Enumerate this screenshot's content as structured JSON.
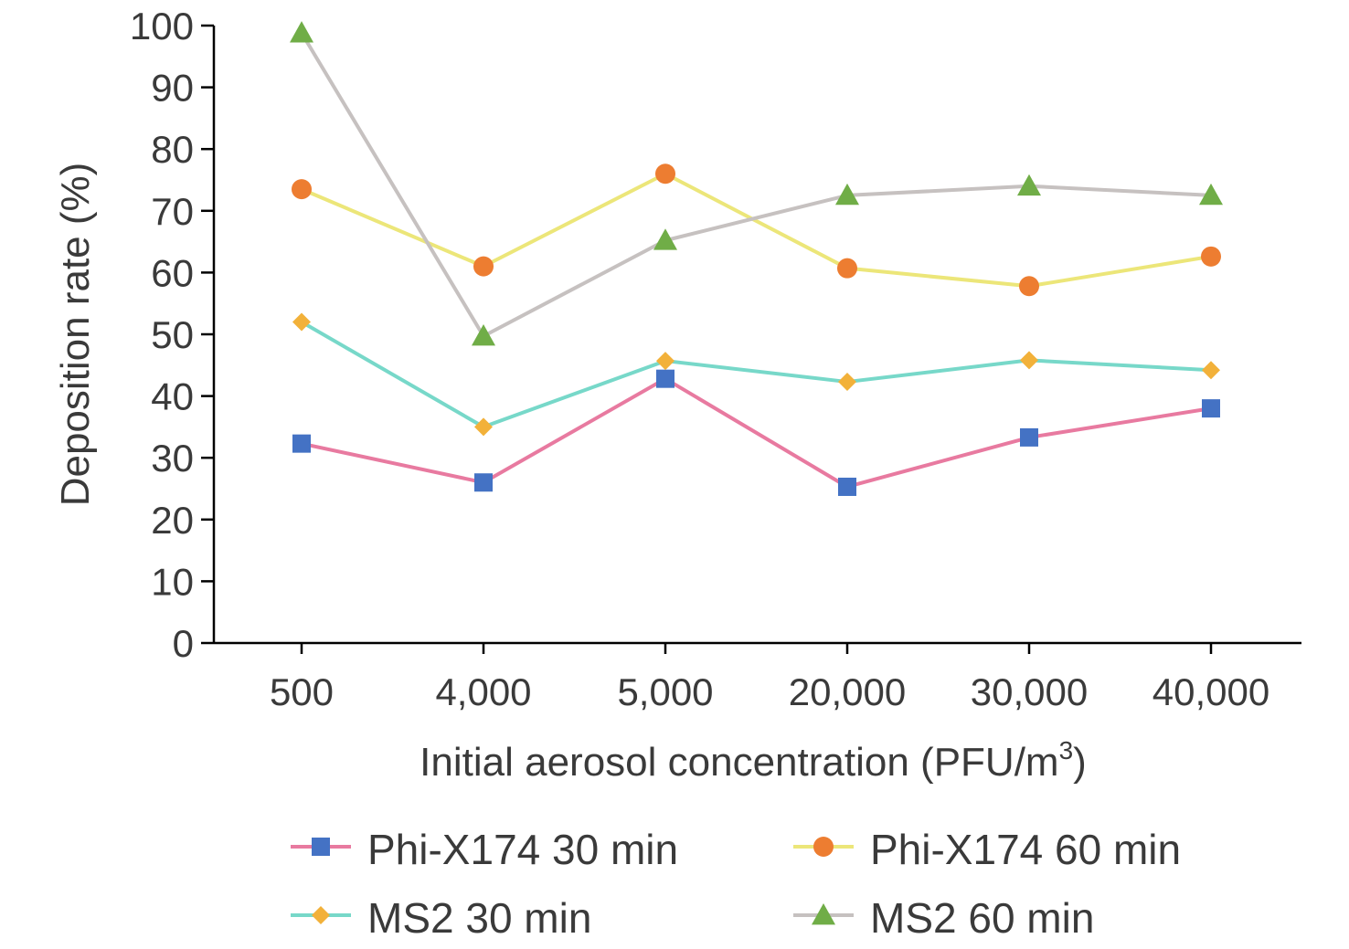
{
  "chart_data": {
    "type": "line",
    "categories": [
      "500",
      "4,000",
      "5,000",
      "20,000",
      "30,000",
      "40,000"
    ],
    "xlabel": "Initial aerosol concentration (PFU/m",
    "xlabel_superscript": "3",
    "xlabel_suffix": ")",
    "ylabel": "Deposition rate (%)",
    "ylim": [
      0,
      100
    ],
    "yticks": [
      "0",
      "10",
      "20",
      "30",
      "40",
      "50",
      "60",
      "70",
      "80",
      "90",
      "100"
    ],
    "grid": false,
    "legend_position": "bottom",
    "series": [
      {
        "name": "Phi-X174 30 min",
        "values": [
          32.3,
          26.0,
          42.8,
          25.3,
          33.3,
          38.0
        ],
        "line_color": "#e87aa0",
        "marker": "square",
        "marker_color": "#4472c4"
      },
      {
        "name": "Phi-X174 60 min",
        "values": [
          73.5,
          61.0,
          76.0,
          60.7,
          57.8,
          62.6
        ],
        "line_color": "#ece679",
        "marker": "circle",
        "marker_color": "#ed7d31"
      },
      {
        "name": "MS2 30 min",
        "values": [
          52.0,
          35.0,
          45.7,
          42.3,
          45.8,
          44.2
        ],
        "line_color": "#77d8c9",
        "marker": "diamond",
        "marker_color": "#f2b13a"
      },
      {
        "name": "MS2 60 min",
        "values": [
          98.8,
          49.7,
          65.2,
          72.5,
          74.0,
          72.5
        ],
        "line_color": "#c6c1c0",
        "marker": "triangle",
        "marker_color": "#70ad47"
      }
    ]
  }
}
